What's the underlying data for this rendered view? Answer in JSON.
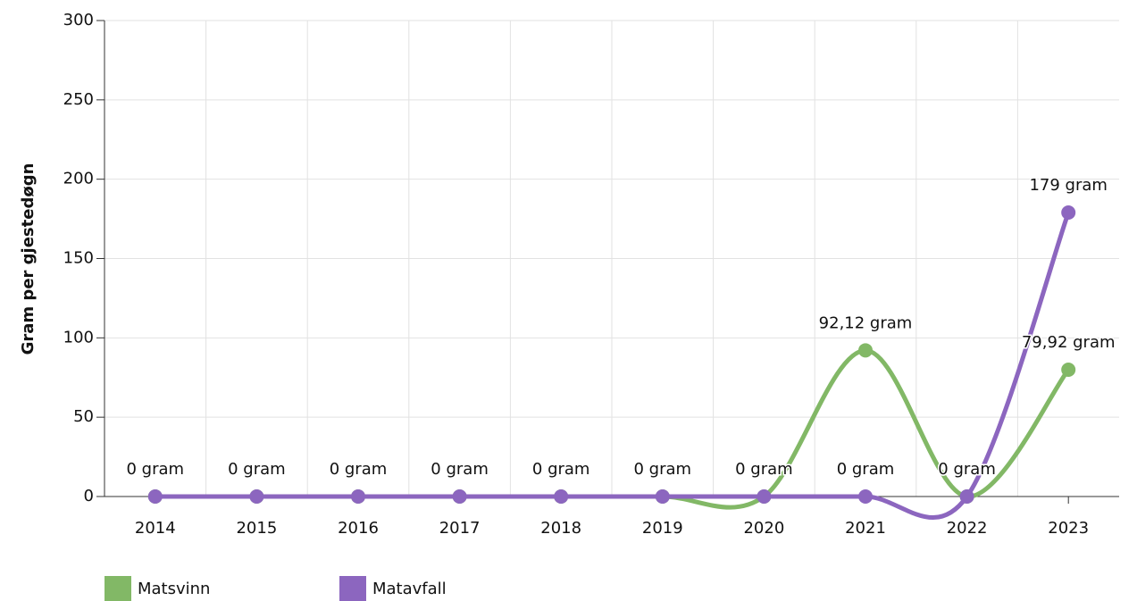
{
  "chart_data": {
    "type": "line",
    "y_label": "Gram per gjestedøgn",
    "categories": [
      "2014",
      "2015",
      "2016",
      "2017",
      "2018",
      "2019",
      "2020",
      "2021",
      "2022",
      "2023"
    ],
    "series": [
      {
        "name": "Matsvinn",
        "color": "#82b866",
        "values": [
          0,
          0,
          0,
          0,
          0,
          0,
          0,
          92.12,
          0,
          79.92
        ],
        "value_labels": [
          "0 gram",
          "0 gram",
          "0 gram",
          "0 gram",
          "0 gram",
          "0 gram",
          "0 gram",
          "92,12 gram",
          "0 gram",
          "79,92 gram"
        ]
      },
      {
        "name": "Matavfall",
        "color": "#8c66bf",
        "values": [
          0,
          0,
          0,
          0,
          0,
          0,
          0,
          0,
          0,
          179
        ],
        "value_labels": [
          "0 gram",
          "0 gram",
          "0 gram",
          "0 gram",
          "0 gram",
          "0 gram",
          "0 gram",
          "0 gram",
          "0 gram",
          "179 gram"
        ]
      }
    ],
    "ylim": [
      0,
      300
    ],
    "yticks": [
      0,
      50,
      100,
      150,
      200,
      250,
      300
    ],
    "grid": true,
    "legend": "bottom-left"
  }
}
